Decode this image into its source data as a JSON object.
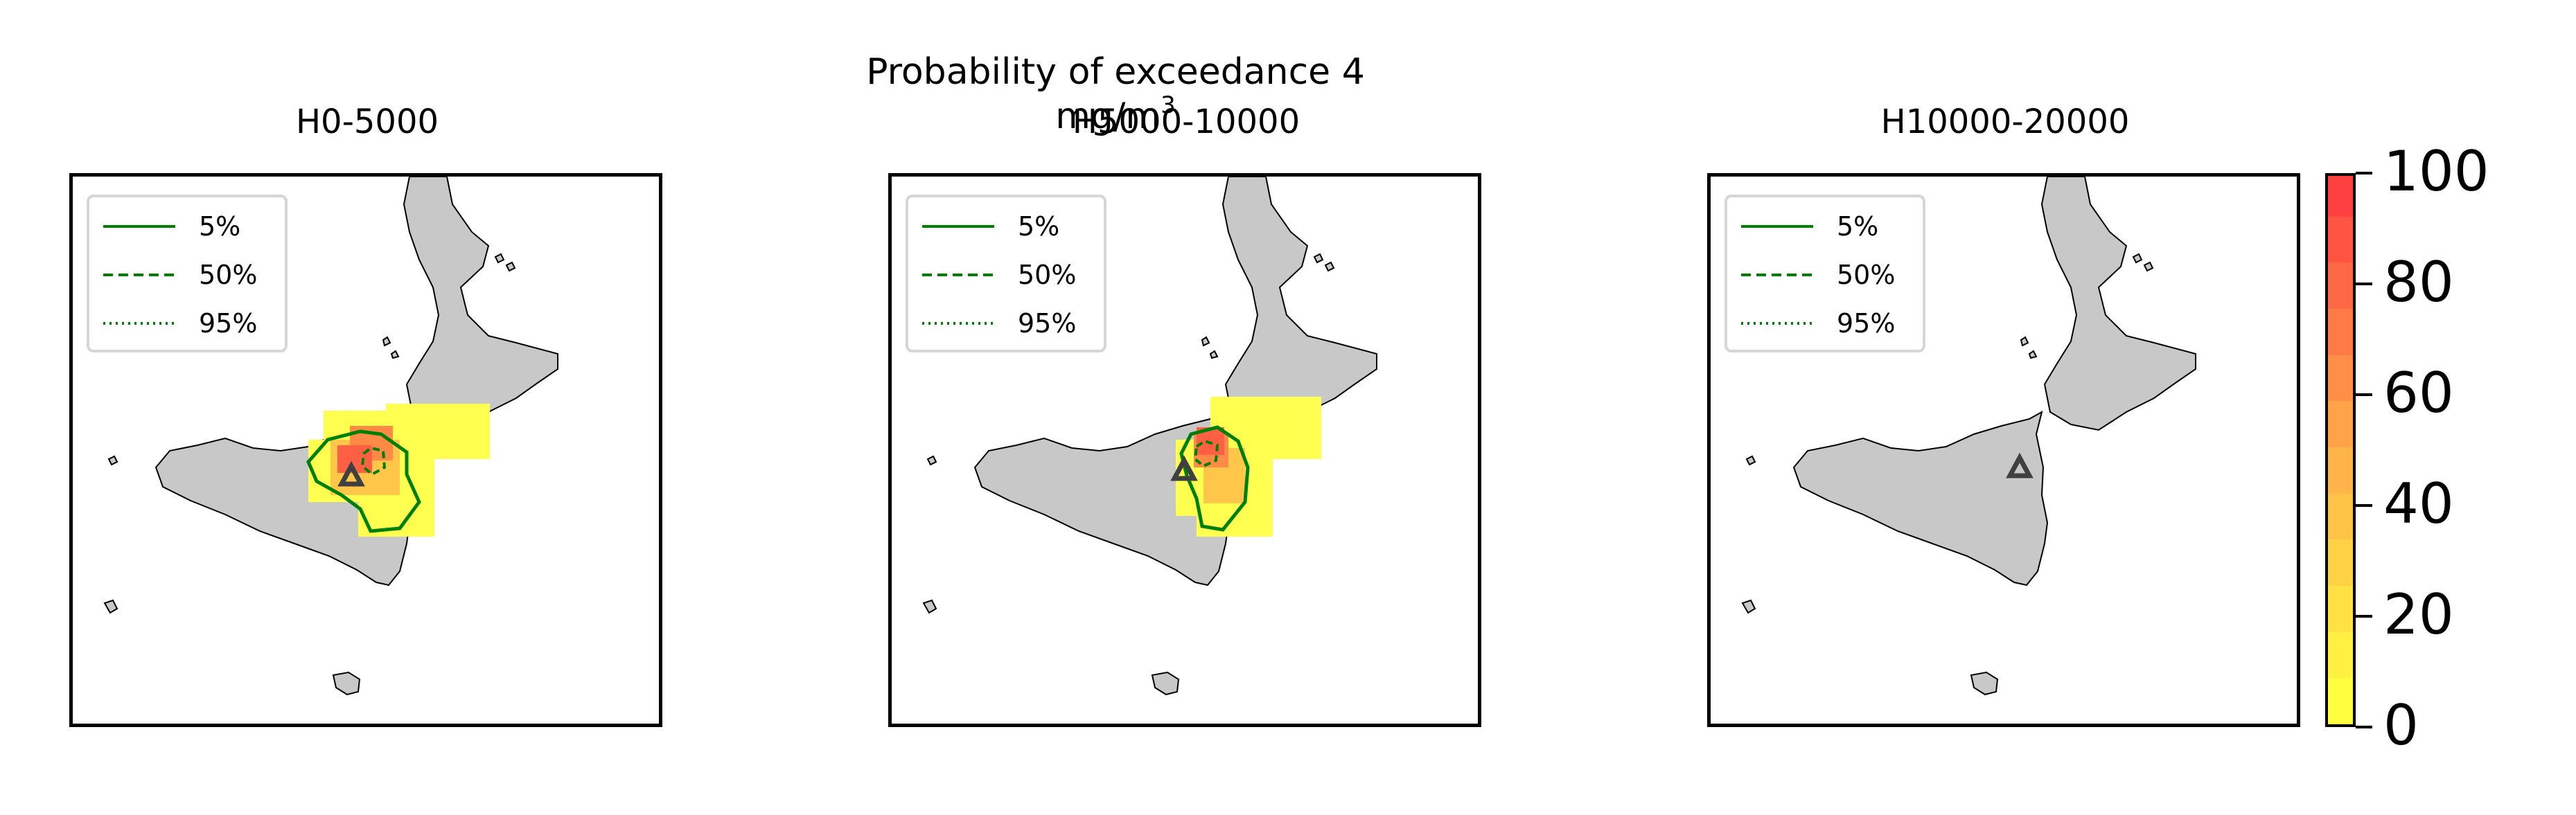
{
  "figure": {
    "suptitle": "Probability of exceedance 4 mg/m",
    "suptitle_sup": "3"
  },
  "panels": [
    {
      "title": "H0-5000",
      "legend": [
        "5%",
        "50%",
        "95%"
      ],
      "vent_marker": "triangle-icon",
      "plume": "large"
    },
    {
      "title": "H5000-10000",
      "legend": [
        "5%",
        "50%",
        "95%"
      ],
      "vent_marker": "triangle-icon",
      "plume": "medium"
    },
    {
      "title": "H10000-20000",
      "legend": [
        "5%",
        "50%",
        "95%"
      ],
      "vent_marker": "triangle-icon",
      "plume": "none"
    }
  ],
  "colorbar": {
    "ticks": [
      "0",
      "20",
      "40",
      "60",
      "80",
      "100"
    ],
    "range": [
      0,
      100
    ],
    "color_low": "#ffff40",
    "color_mid": "#ffad4a",
    "color_high": "#ff4040"
  },
  "colors": {
    "land": "#c8c8c8",
    "contour": "#008000",
    "vent": "#404040"
  }
}
